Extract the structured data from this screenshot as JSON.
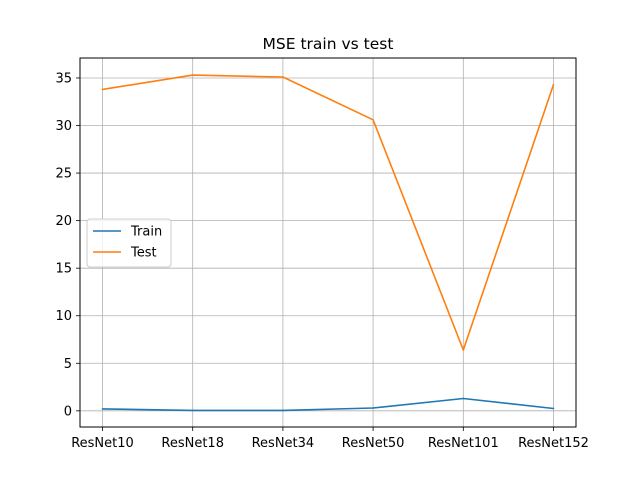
{
  "chart_data": {
    "type": "line",
    "title": "MSE train vs test",
    "xlabel": "",
    "ylabel": "",
    "categories": [
      "ResNet10",
      "ResNet18",
      "ResNet34",
      "ResNet50",
      "ResNet101",
      "ResNet152"
    ],
    "series": [
      {
        "name": "Train",
        "color": "#1f77b4",
        "values": [
          0.2,
          0.05,
          0.05,
          0.3,
          1.3,
          0.25
        ]
      },
      {
        "name": "Test",
        "color": "#ff7f0e",
        "values": [
          33.8,
          35.3,
          35.1,
          30.6,
          6.4,
          34.3
        ]
      }
    ],
    "yticks": [
      0,
      5,
      10,
      15,
      20,
      25,
      30,
      35
    ],
    "ylim": [
      -1.7,
      37.1
    ],
    "grid": true,
    "legend": "center-left"
  }
}
